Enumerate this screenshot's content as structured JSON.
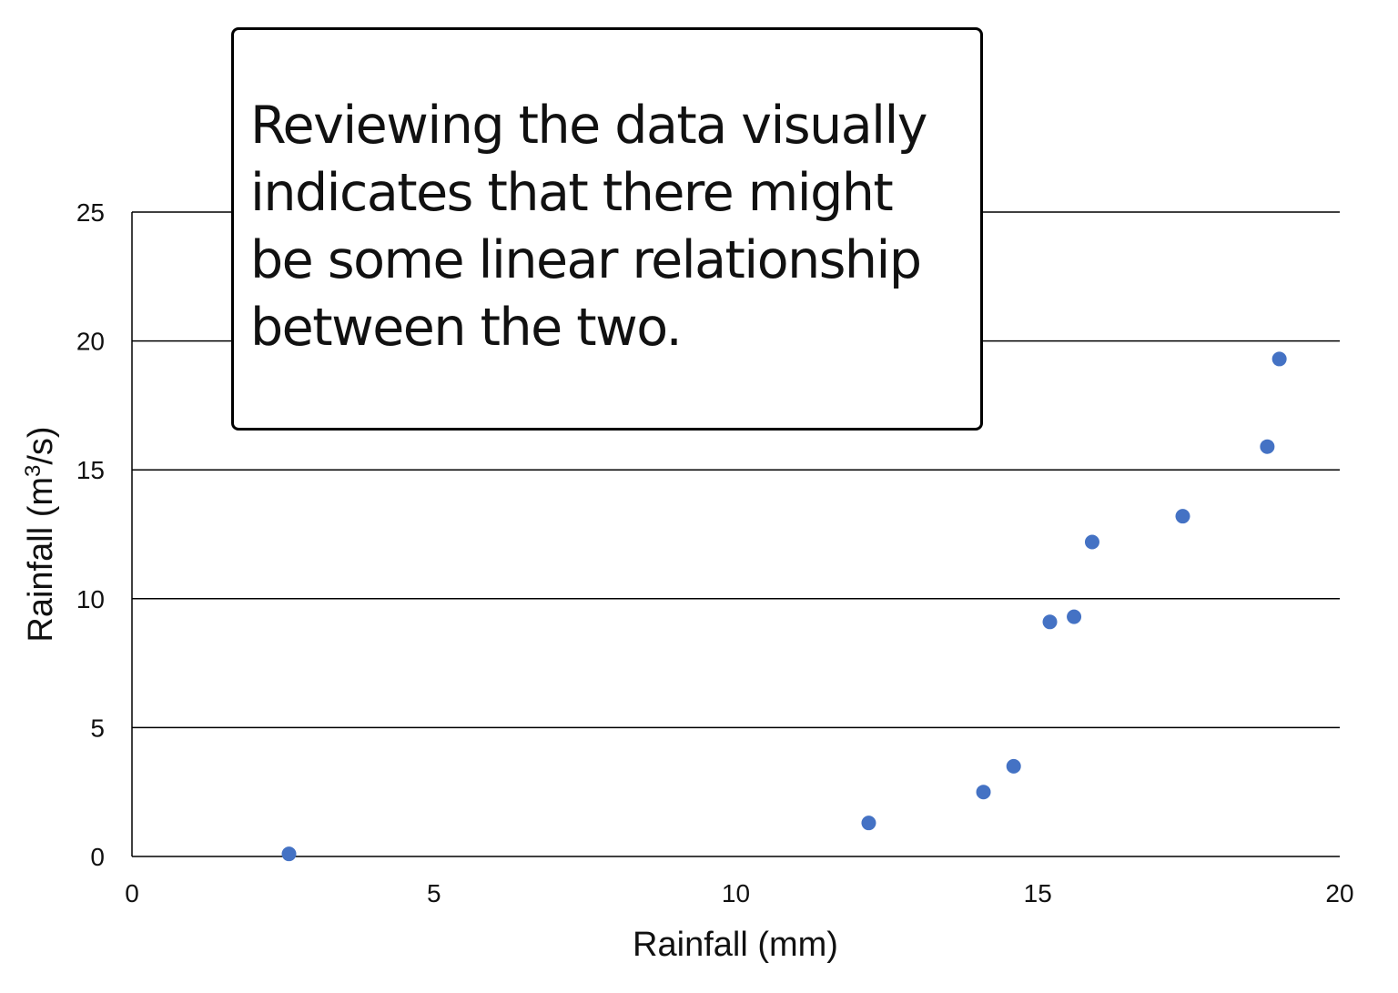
{
  "chart_data": {
    "type": "scatter",
    "title": "",
    "xlabel": "Rainfall (mm)",
    "ylabel_main": "Rainfall (m",
    "ylabel_sup": "3",
    "ylabel_end": "/s)",
    "xlim": [
      0,
      20
    ],
    "ylim": [
      0,
      25
    ],
    "xticks": [
      0,
      5,
      10,
      15,
      20
    ],
    "yticks": [
      0,
      5,
      10,
      15,
      20,
      25
    ],
    "grid": "horizontal",
    "marker_color": "#4472C4",
    "points": [
      {
        "x": 2.6,
        "y": 0.1
      },
      {
        "x": 12.2,
        "y": 1.3
      },
      {
        "x": 14.1,
        "y": 2.5
      },
      {
        "x": 14.6,
        "y": 3.5
      },
      {
        "x": 15.2,
        "y": 9.1
      },
      {
        "x": 15.6,
        "y": 9.3
      },
      {
        "x": 15.9,
        "y": 12.2
      },
      {
        "x": 17.4,
        "y": 13.2
      },
      {
        "x": 18.8,
        "y": 15.9
      },
      {
        "x": 19.0,
        "y": 19.3
      }
    ],
    "annotation": "Reviewing the data visually indicates that there might be some linear relationship between the two."
  }
}
